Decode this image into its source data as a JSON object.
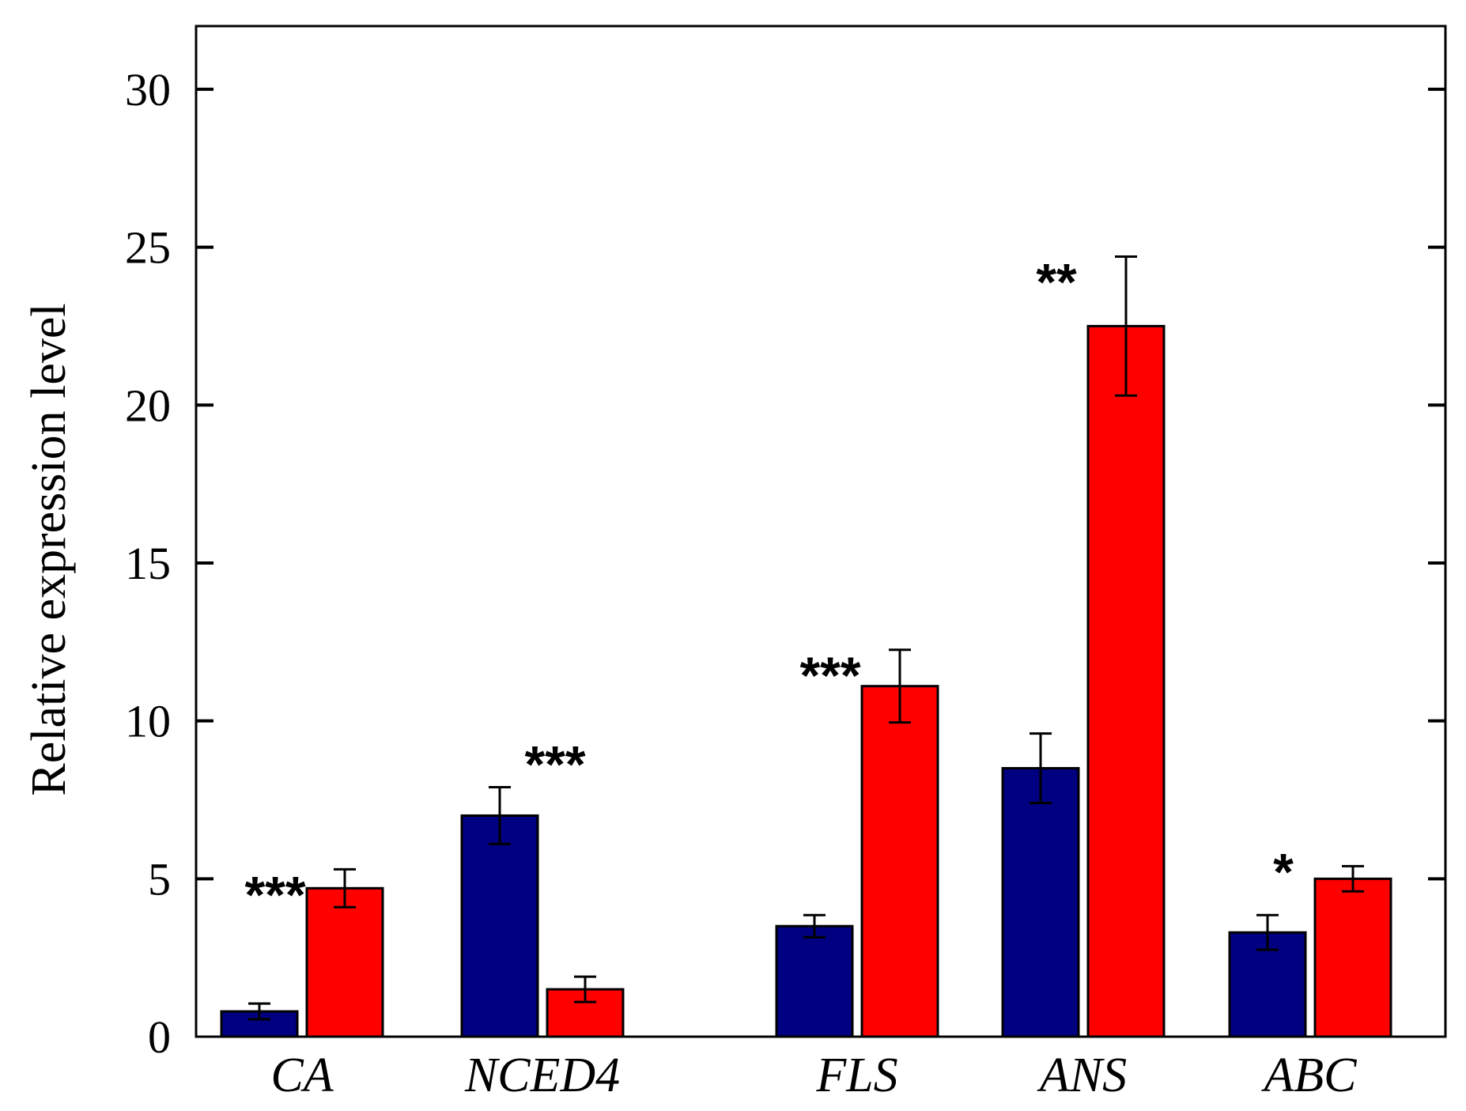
{
  "chart_data": {
    "type": "bar",
    "title": "",
    "xlabel": "",
    "ylabel": "Relative expression level",
    "ylim": [
      0,
      32
    ],
    "yticks": [
      0,
      5,
      10,
      15,
      20,
      25,
      30
    ],
    "grid": false,
    "legend": "none",
    "groups": [
      {
        "label": "CA",
        "bars": [
          {
            "series": "series-1",
            "value": 0.8,
            "error": 0.25
          },
          {
            "series": "series-2",
            "value": 4.7,
            "error": 0.6
          }
        ],
        "significance": "***"
      },
      {
        "label": "NCED4",
        "bars": [
          {
            "series": "series-1",
            "value": 7.0,
            "error": 0.9
          },
          {
            "series": "series-2",
            "value": 1.5,
            "error": 0.4
          }
        ],
        "significance": "***"
      },
      {
        "label": "FLS",
        "bars": [
          {
            "series": "series-1",
            "value": 3.5,
            "error": 0.35
          },
          {
            "series": "series-2",
            "value": 11.1,
            "error": 1.15
          }
        ],
        "significance": "***"
      },
      {
        "label": "ANS",
        "bars": [
          {
            "series": "series-1",
            "value": 8.5,
            "error": 1.1
          },
          {
            "series": "series-2",
            "value": 22.5,
            "error": 2.2
          }
        ],
        "significance": "**"
      },
      {
        "label": "ABC",
        "bars": [
          {
            "series": "series-1",
            "value": 3.3,
            "error": 0.55
          },
          {
            "series": "series-2",
            "value": 5.0,
            "error": 0.4
          }
        ],
        "significance": "*"
      }
    ],
    "series_colors": {
      "series-1": "#000080",
      "series-2": "#ff0000"
    }
  }
}
